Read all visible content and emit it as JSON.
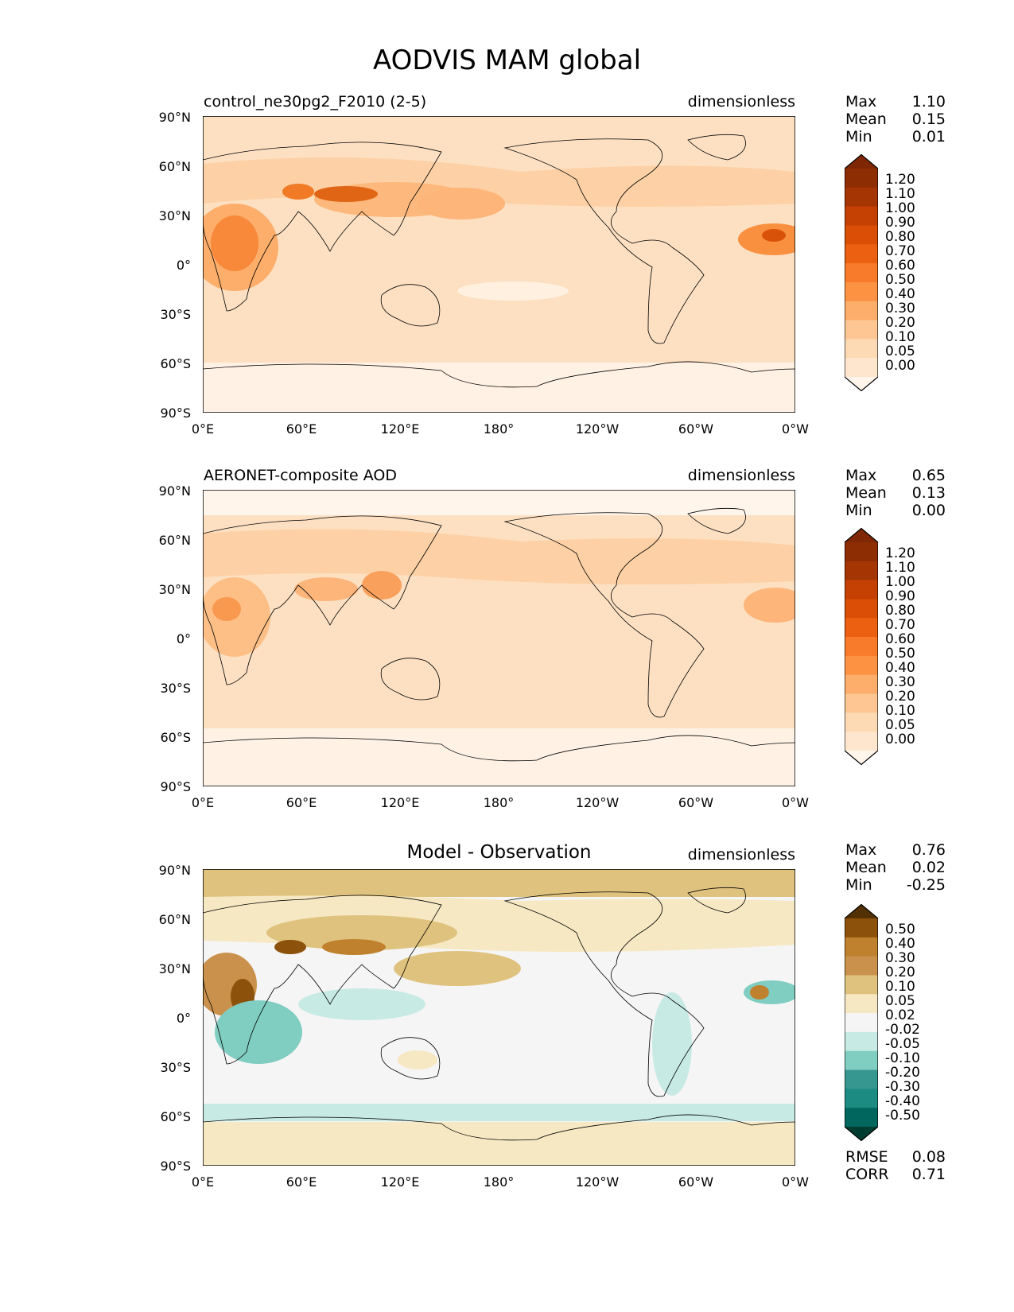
{
  "title": "AODVIS MAM global",
  "lat_ticks": [
    "90°N",
    "60°N",
    "30°N",
    "0°",
    "30°S",
    "60°S",
    "90°S"
  ],
  "lon_ticks": [
    "0°E",
    "60°E",
    "120°E",
    "180°",
    "120°W",
    "60°W",
    "0°W"
  ],
  "panels": [
    {
      "title_left": "control_ne30pg2_F2010 (2-5)",
      "title_center": "",
      "units": "dimensionless",
      "stats": {
        "max_label": "Max",
        "max": "1.10",
        "mean_label": "Mean",
        "mean": "0.15",
        "min_label": "Min",
        "min": "0.01"
      },
      "colorbar_levels": [
        "1.20",
        "1.10",
        "1.00",
        "0.90",
        "0.80",
        "0.70",
        "0.60",
        "0.50",
        "0.40",
        "0.30",
        "0.20",
        "0.10",
        "0.05",
        "0.00"
      ]
    },
    {
      "title_left": "AERONET-composite AOD",
      "title_center": "",
      "units": "dimensionless",
      "stats": {
        "max_label": "Max",
        "max": "0.65",
        "mean_label": "Mean",
        "mean": "0.13",
        "min_label": "Min",
        "min": "0.00"
      },
      "colorbar_levels": [
        "1.20",
        "1.10",
        "1.00",
        "0.90",
        "0.80",
        "0.70",
        "0.60",
        "0.50",
        "0.40",
        "0.30",
        "0.20",
        "0.10",
        "0.05",
        "0.00"
      ]
    },
    {
      "title_left": "",
      "title_center": "Model - Observation",
      "units": "dimensionless",
      "stats": {
        "max_label": "Max",
        "max": "0.76",
        "mean_label": "Mean",
        "mean": "0.02",
        "min_label": "Min",
        "min": "-0.25"
      },
      "colorbar_levels": [
        "0.50",
        "0.40",
        "0.30",
        "0.20",
        "0.10",
        "0.05",
        "0.02",
        "-0.02",
        "-0.05",
        "-0.10",
        "-0.20",
        "-0.30",
        "-0.40",
        "-0.50"
      ],
      "extra_stats": {
        "rmse_label": "RMSE",
        "rmse": "0.08",
        "corr_label": "CORR",
        "corr": "0.71"
      }
    }
  ],
  "colors": {
    "seq": [
      "#fff5eb",
      "#fee6ce",
      "#fdd9b4",
      "#fdc692",
      "#fdae6b",
      "#fd9243",
      "#f87b2b",
      "#ec6011",
      "#da4f05",
      "#c44103",
      "#a53603",
      "#8c2d04",
      "#7f2704"
    ],
    "div": [
      "#003c30",
      "#01665e",
      "#1c8c82",
      "#35978f",
      "#80cdc1",
      "#c7eae5",
      "#f5f5f5",
      "#f6e8c3",
      "#dfc27d",
      "#c9914b",
      "#bf812d",
      "#8c510a",
      "#543005"
    ],
    "coast": "#000000"
  }
}
